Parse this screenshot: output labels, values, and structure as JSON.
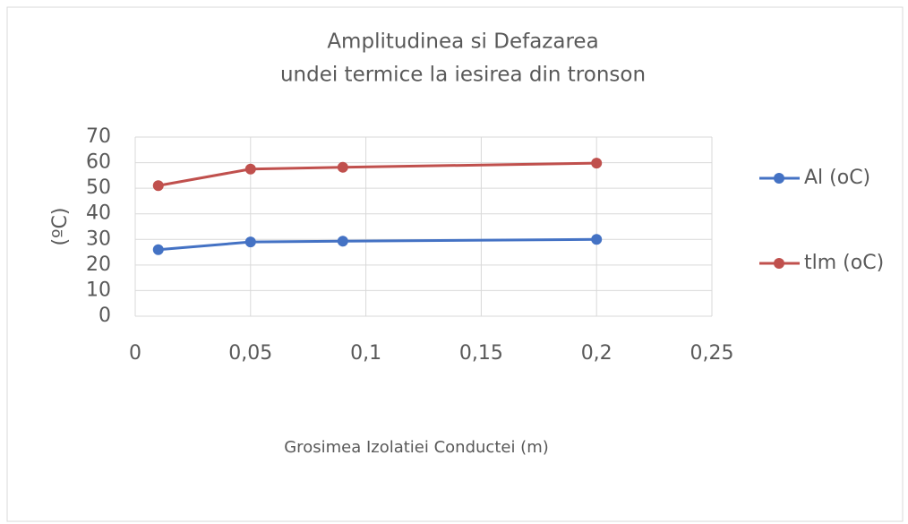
{
  "chart_data": {
    "type": "line",
    "title": [
      "Amplitudinea si Defazarea",
      "undei termice la iesirea din tronson"
    ],
    "x_label": "Grosimea Izolatiei Conductei (m)",
    "y_label": "(ºC)",
    "x": [
      0.01,
      0.05,
      0.09,
      0.2
    ],
    "series": [
      {
        "name": "Al (oC)",
        "color": "#4472c4",
        "values": [
          26,
          29,
          29.3,
          30
        ]
      },
      {
        "name": "tlm (oC)",
        "color": "#c0504d",
        "values": [
          51,
          57.5,
          58.2,
          59.8
        ]
      }
    ],
    "xlim": [
      0,
      0.25
    ],
    "xticks": [
      0,
      {
        "value": 0.05,
        "label": "0,05"
      },
      {
        "value": 0.1,
        "label": "0,1"
      },
      {
        "value": 0.15,
        "label": "0,15"
      },
      {
        "value": 0.2,
        "label": "0,2"
      },
      {
        "value": 0.25,
        "label": "0,25"
      }
    ],
    "ylim": [
      0,
      70
    ],
    "yticks": [
      0,
      10,
      20,
      30,
      40,
      50,
      60,
      70
    ],
    "grid": true,
    "legend": "right"
  }
}
